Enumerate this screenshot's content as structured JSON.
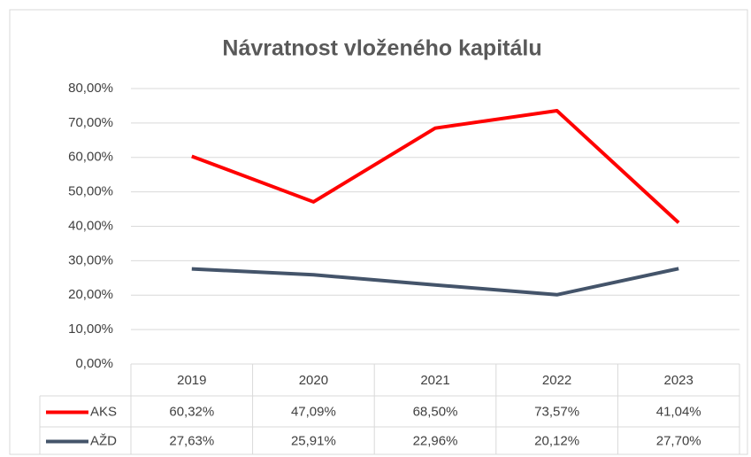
{
  "chart_data": {
    "type": "line",
    "title": "Návratnost vloženého kapitálu",
    "categories": [
      "2019",
      "2020",
      "2021",
      "2022",
      "2023"
    ],
    "series": [
      {
        "name": "AKS",
        "color": "#ff0000",
        "values": [
          60.32,
          47.09,
          68.5,
          73.57,
          41.04
        ],
        "value_labels": [
          "60,32%",
          "47,09%",
          "68,50%",
          "73,57%",
          "41,04%"
        ]
      },
      {
        "name": "AŽD",
        "color": "#44546a",
        "values": [
          27.63,
          25.91,
          22.96,
          20.12,
          27.7
        ],
        "value_labels": [
          "27,63%",
          "25,91%",
          "22,96%",
          "20,12%",
          "27,70%"
        ]
      }
    ],
    "ylim": [
      0,
      80
    ],
    "yticks": [
      {
        "value": 0,
        "label": "0,00%"
      },
      {
        "value": 10,
        "label": "10,00%"
      },
      {
        "value": 20,
        "label": "20,00%"
      },
      {
        "value": 30,
        "label": "30,00%"
      },
      {
        "value": 40,
        "label": "40,00%"
      },
      {
        "value": 50,
        "label": "50,00%"
      },
      {
        "value": 60,
        "label": "60,00%"
      },
      {
        "value": 70,
        "label": "70,00%"
      },
      {
        "value": 80,
        "label": "80,00%"
      }
    ],
    "grid": true,
    "data_table": true
  }
}
